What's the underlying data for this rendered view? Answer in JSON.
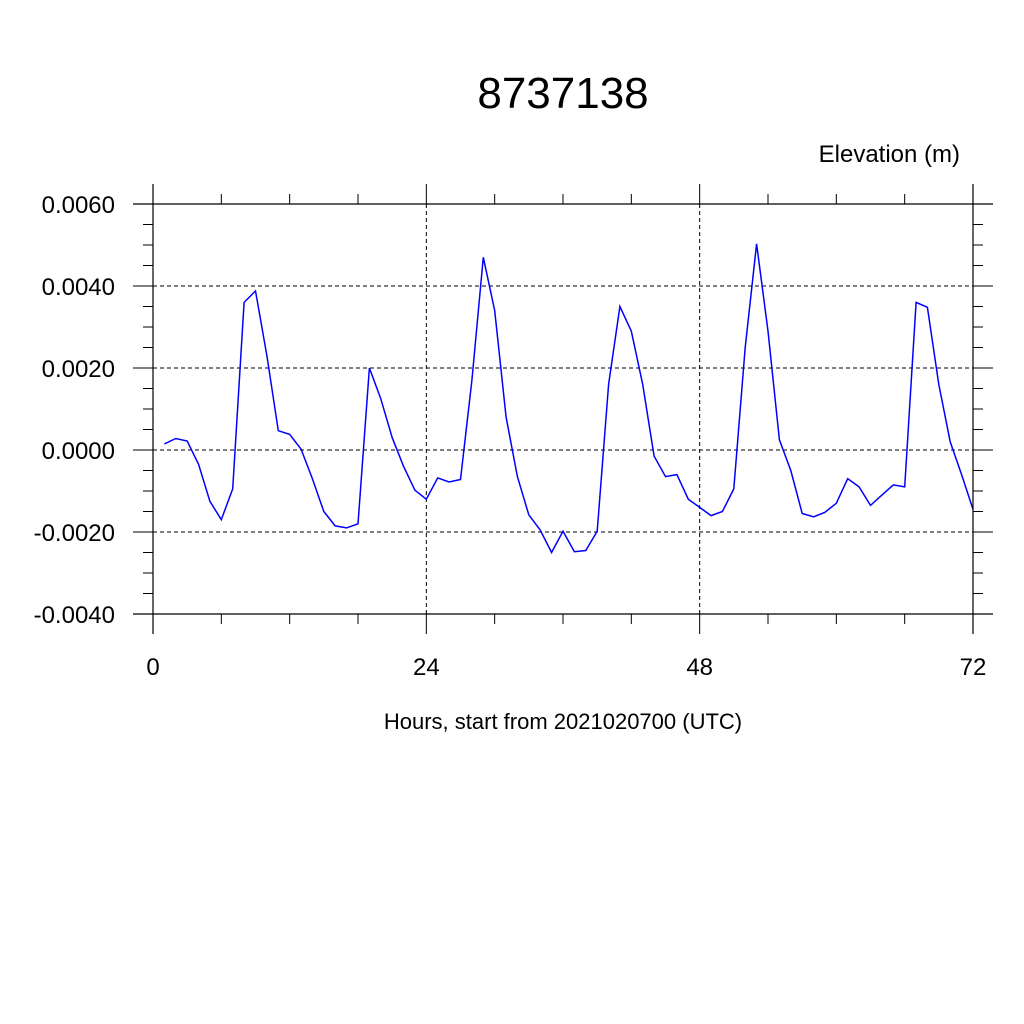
{
  "chart_data": {
    "type": "line",
    "title": "8737138",
    "units_label": "Elevation (m)",
    "xlabel": "Hours, start from 2021020700 (UTC)",
    "ylabel": "",
    "xlim": [
      0,
      72
    ],
    "ylim": [
      -0.004,
      0.006
    ],
    "x_ticks": [
      0,
      24,
      48,
      72
    ],
    "x_tick_labels": [
      "0",
      "24",
      "48",
      "72"
    ],
    "y_ticks": [
      -0.004,
      -0.002,
      0.0,
      0.002,
      0.004,
      0.006
    ],
    "y_tick_labels": [
      "-0.0040",
      "-0.0020",
      "0.0000",
      "0.0020",
      "0.0040",
      "0.0060"
    ],
    "grid": true,
    "series": [
      {
        "color": "#0000ff",
        "x": [
          1,
          2,
          3,
          4,
          5,
          6,
          7,
          8,
          9,
          10,
          11,
          12,
          13,
          14,
          15,
          16,
          17,
          18,
          19,
          20,
          21,
          22,
          23,
          24,
          25,
          26,
          27,
          28,
          29,
          30,
          31,
          32,
          33,
          34,
          35,
          36,
          37,
          38,
          39,
          40,
          41,
          42,
          43,
          44,
          45,
          46,
          47,
          48,
          49,
          50,
          51,
          52,
          53,
          54,
          55,
          56,
          57,
          58,
          59,
          60,
          61,
          62,
          63,
          64,
          65,
          66,
          67,
          68,
          69,
          70,
          71,
          72
        ],
        "values": [
          0.00015,
          0.00028,
          0.00022,
          -0.00035,
          -0.00125,
          -0.0017,
          -0.00095,
          0.0036,
          0.00388,
          0.0023,
          0.00047,
          0.00038,
          2e-05,
          -0.0007,
          -0.0015,
          -0.00185,
          -0.0019,
          -0.0018,
          0.002,
          0.00125,
          0.0003,
          -0.0004,
          -0.00098,
          -0.0012,
          -0.00068,
          -0.00078,
          -0.00072,
          0.0017,
          0.0047,
          0.0034,
          0.0008,
          -0.00065,
          -0.00158,
          -0.00195,
          -0.0025,
          -0.00198,
          -0.00248,
          -0.00245,
          -0.00198,
          0.0016,
          0.0035,
          0.0029,
          0.0016,
          -0.00015,
          -0.00065,
          -0.0006,
          -0.0012,
          -0.0014,
          -0.0016,
          -0.0015,
          -0.00095,
          0.0025,
          0.00503,
          0.0029,
          0.00025,
          -0.0005,
          -0.00155,
          -0.00163,
          -0.00152,
          -0.0013,
          -0.0007,
          -0.0009,
          -0.00135,
          -0.0011,
          -0.00085,
          -0.0009,
          0.0036,
          0.00348,
          0.0016,
          0.0002,
          -0.0006,
          -0.00145
        ]
      }
    ]
  }
}
